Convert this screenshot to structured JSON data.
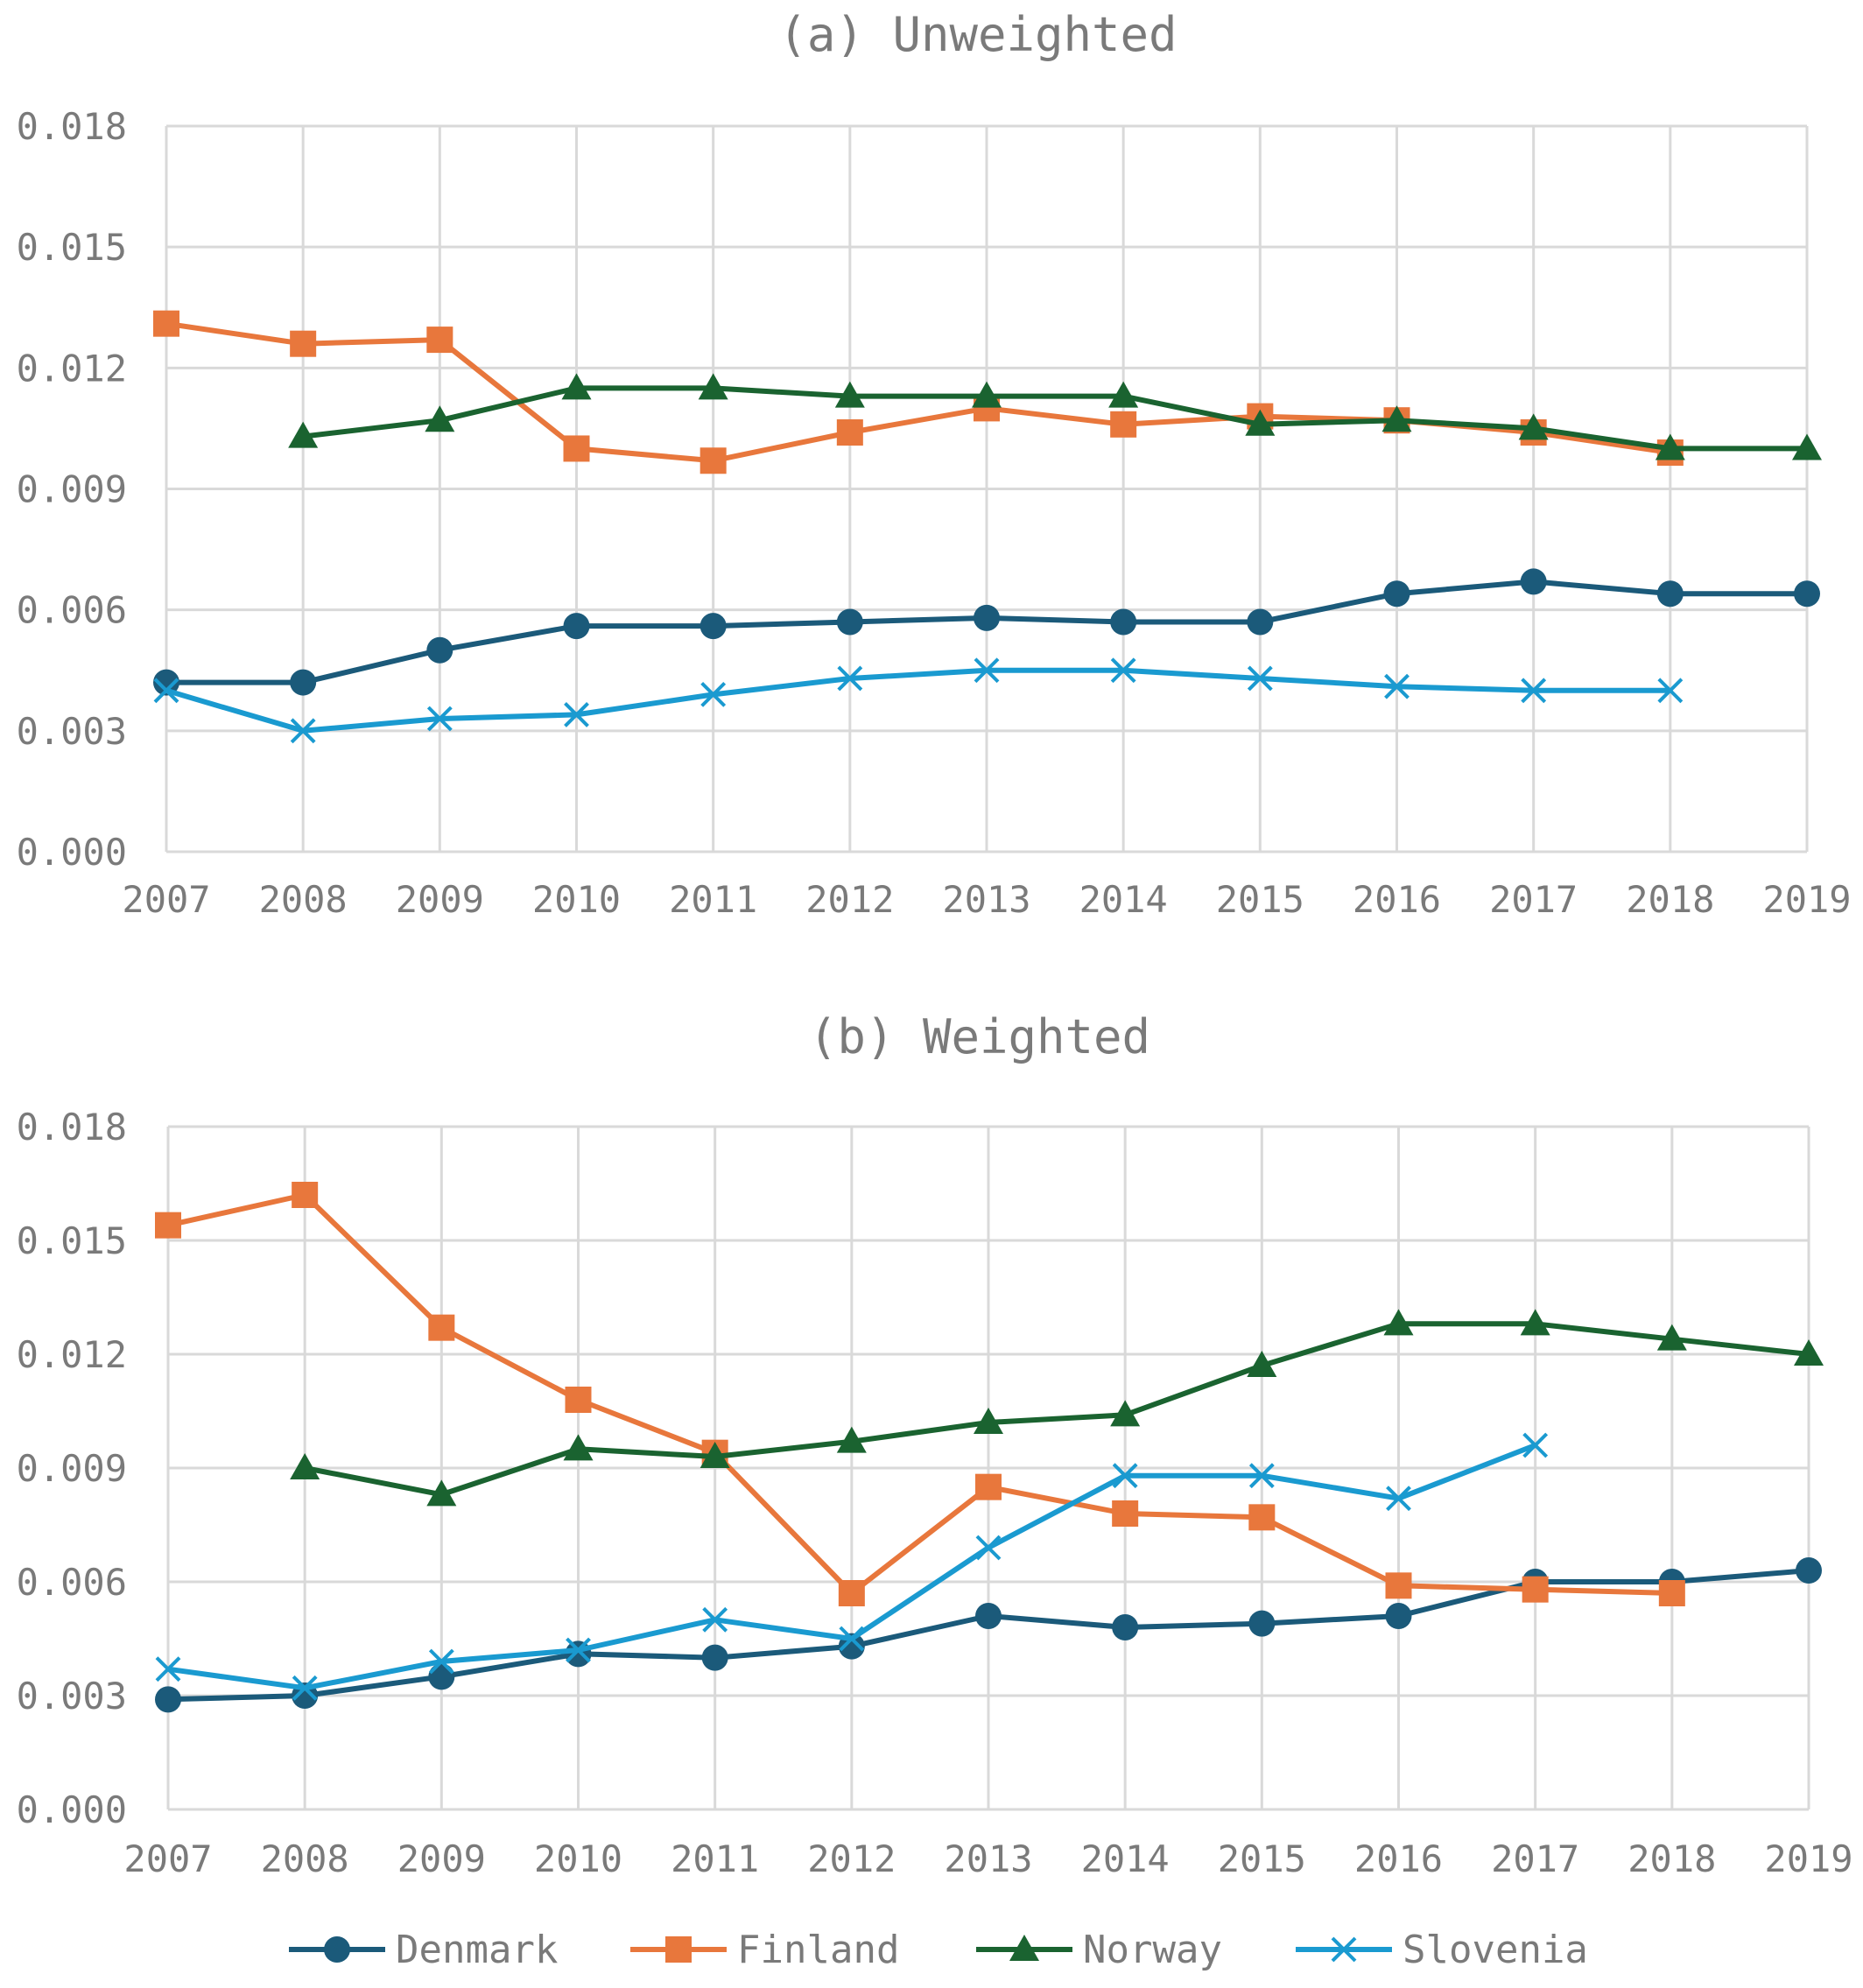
{
  "chart_data": [
    {
      "type": "line",
      "title": "(a) Unweighted",
      "xlabel": "",
      "ylabel": "",
      "x": [
        2007,
        2008,
        2009,
        2010,
        2011,
        2012,
        2013,
        2014,
        2015,
        2016,
        2017,
        2018,
        2019
      ],
      "x_tick_labels": [
        "2007",
        "2008",
        "2009",
        "2010",
        "2011",
        "2012",
        "2013",
        "2014",
        "2015",
        "2016",
        "2017",
        "2018",
        "2019"
      ],
      "ylim": [
        0,
        0.018
      ],
      "y_tick_values": [
        0,
        0.003,
        0.006,
        0.009,
        0.012,
        0.015,
        0.018
      ],
      "y_tick_labels": [
        "0.000",
        "0.003",
        "0.006",
        "0.009",
        "0.012",
        "0.015",
        "0.018"
      ],
      "grid": true,
      "series": [
        {
          "name": "Denmark",
          "color": "#1b5a7a",
          "marker": "circle",
          "values": [
            0.0042,
            0.0042,
            0.005,
            0.0056,
            0.0056,
            0.0057,
            0.0058,
            0.0057,
            0.0057,
            0.0064,
            0.0067,
            0.0064,
            0.0064
          ]
        },
        {
          "name": "Finland",
          "color": "#e8773c",
          "marker": "square",
          "values": [
            0.0131,
            0.0126,
            0.0127,
            0.01,
            0.0097,
            0.0104,
            0.011,
            0.0106,
            0.0108,
            0.0107,
            0.0104,
            0.0099,
            null
          ]
        },
        {
          "name": "Norway",
          "color": "#1a6330",
          "marker": "triangle",
          "values": [
            null,
            0.0103,
            0.0107,
            0.0115,
            0.0115,
            0.0113,
            0.0113,
            0.0113,
            0.0106,
            0.0107,
            0.0105,
            0.01,
            0.01
          ]
        },
        {
          "name": "Slovenia",
          "color": "#1a9ad0",
          "marker": "x",
          "values": [
            0.004,
            0.003,
            0.0033,
            0.0034,
            0.0039,
            0.0043,
            0.0045,
            0.0045,
            0.0043,
            0.0041,
            0.004,
            0.004,
            null
          ]
        }
      ]
    },
    {
      "type": "line",
      "title": "(b) Weighted",
      "xlabel": "",
      "ylabel": "",
      "x": [
        2007,
        2008,
        2009,
        2010,
        2011,
        2012,
        2013,
        2014,
        2015,
        2016,
        2017,
        2018,
        2019
      ],
      "x_tick_labels": [
        "2007",
        "2008",
        "2009",
        "2010",
        "2011",
        "2012",
        "2013",
        "2014",
        "2015",
        "2016",
        "2017",
        "2018",
        "2019"
      ],
      "ylim": [
        0,
        0.018
      ],
      "y_tick_values": [
        0,
        0.003,
        0.006,
        0.009,
        0.012,
        0.015,
        0.018
      ],
      "y_tick_labels": [
        "0.000",
        "0.003",
        "0.006",
        "0.009",
        "0.012",
        "0.015",
        "0.018"
      ],
      "grid": true,
      "series": [
        {
          "name": "Denmark",
          "color": "#1b5a7a",
          "marker": "circle",
          "values": [
            0.0029,
            0.003,
            0.0035,
            0.0041,
            0.004,
            0.0043,
            0.0051,
            0.0048,
            0.0049,
            0.0051,
            0.006,
            0.006,
            0.0063
          ]
        },
        {
          "name": "Finland",
          "color": "#e8773c",
          "marker": "square",
          "values": [
            0.0154,
            0.0162,
            0.0127,
            0.0108,
            0.0094,
            0.0057,
            0.0085,
            0.0078,
            0.0077,
            0.0059,
            0.0058,
            0.0057,
            null
          ]
        },
        {
          "name": "Norway",
          "color": "#1a6330",
          "marker": "triangle",
          "values": [
            null,
            0.009,
            0.0083,
            0.0095,
            0.0093,
            0.0097,
            0.0102,
            0.0104,
            0.0117,
            0.0128,
            0.0128,
            0.0124,
            0.012
          ]
        },
        {
          "name": "Slovenia",
          "color": "#1a9ad0",
          "marker": "x",
          "values": [
            0.0037,
            0.0032,
            0.0039,
            0.0042,
            0.005,
            0.0045,
            0.0069,
            0.0088,
            0.0088,
            0.0082,
            0.0096,
            null,
            null
          ]
        }
      ]
    }
  ],
  "legend": {
    "placement": "bottom",
    "entries": [
      {
        "name": "Denmark",
        "color": "#1b5a7a",
        "marker": "circle"
      },
      {
        "name": "Finland",
        "color": "#e8773c",
        "marker": "square"
      },
      {
        "name": "Norway",
        "color": "#1a6330",
        "marker": "triangle"
      },
      {
        "name": "Slovenia",
        "color": "#1a9ad0",
        "marker": "x"
      }
    ]
  }
}
